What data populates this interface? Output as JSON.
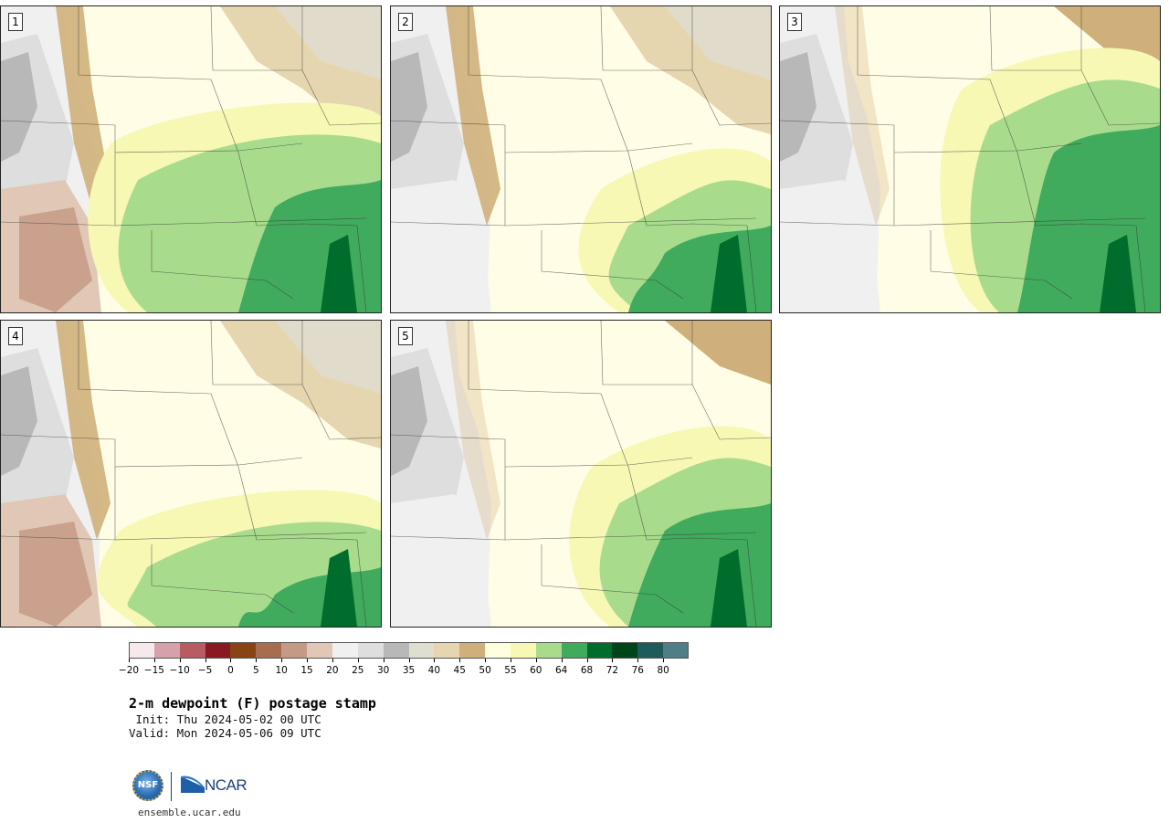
{
  "panels": [
    {
      "num": "1"
    },
    {
      "num": "2"
    },
    {
      "num": "3"
    },
    {
      "num": "4"
    },
    {
      "num": "5"
    }
  ],
  "colorbar": {
    "colors": [
      "#f5e9ec",
      "#d6a1a8",
      "#b85b63",
      "#8a1a22",
      "#8a4312",
      "#a86d4e",
      "#c49a85",
      "#e1c7b6",
      "#f0f0f0",
      "#dedede",
      "#b8b8b8",
      "#dfdfd0",
      "#e6d6b0",
      "#cfb07a",
      "#ffffe0",
      "#f6f8b4",
      "#a8dc8c",
      "#41ab5d",
      "#006d2c",
      "#00441b",
      "#1f5b5b",
      "#4f7f86"
    ],
    "ticks": [
      "−20",
      "−15",
      "−10",
      "−5",
      "0",
      "5",
      "10",
      "15",
      "20",
      "25",
      "30",
      "35",
      "40",
      "45",
      "50",
      "55",
      "60",
      "64",
      "68",
      "72",
      "76",
      "80"
    ]
  },
  "title": "2-m dewpoint (F) postage stamp",
  "init": " Init: Thu 2024-05-02 00 UTC",
  "valid": "Valid: Mon 2024-05-06 09 UTC",
  "logo": {
    "nsf": "NSF",
    "ncar": "NCAR"
  },
  "website": "ensemble.ucar.edu"
}
